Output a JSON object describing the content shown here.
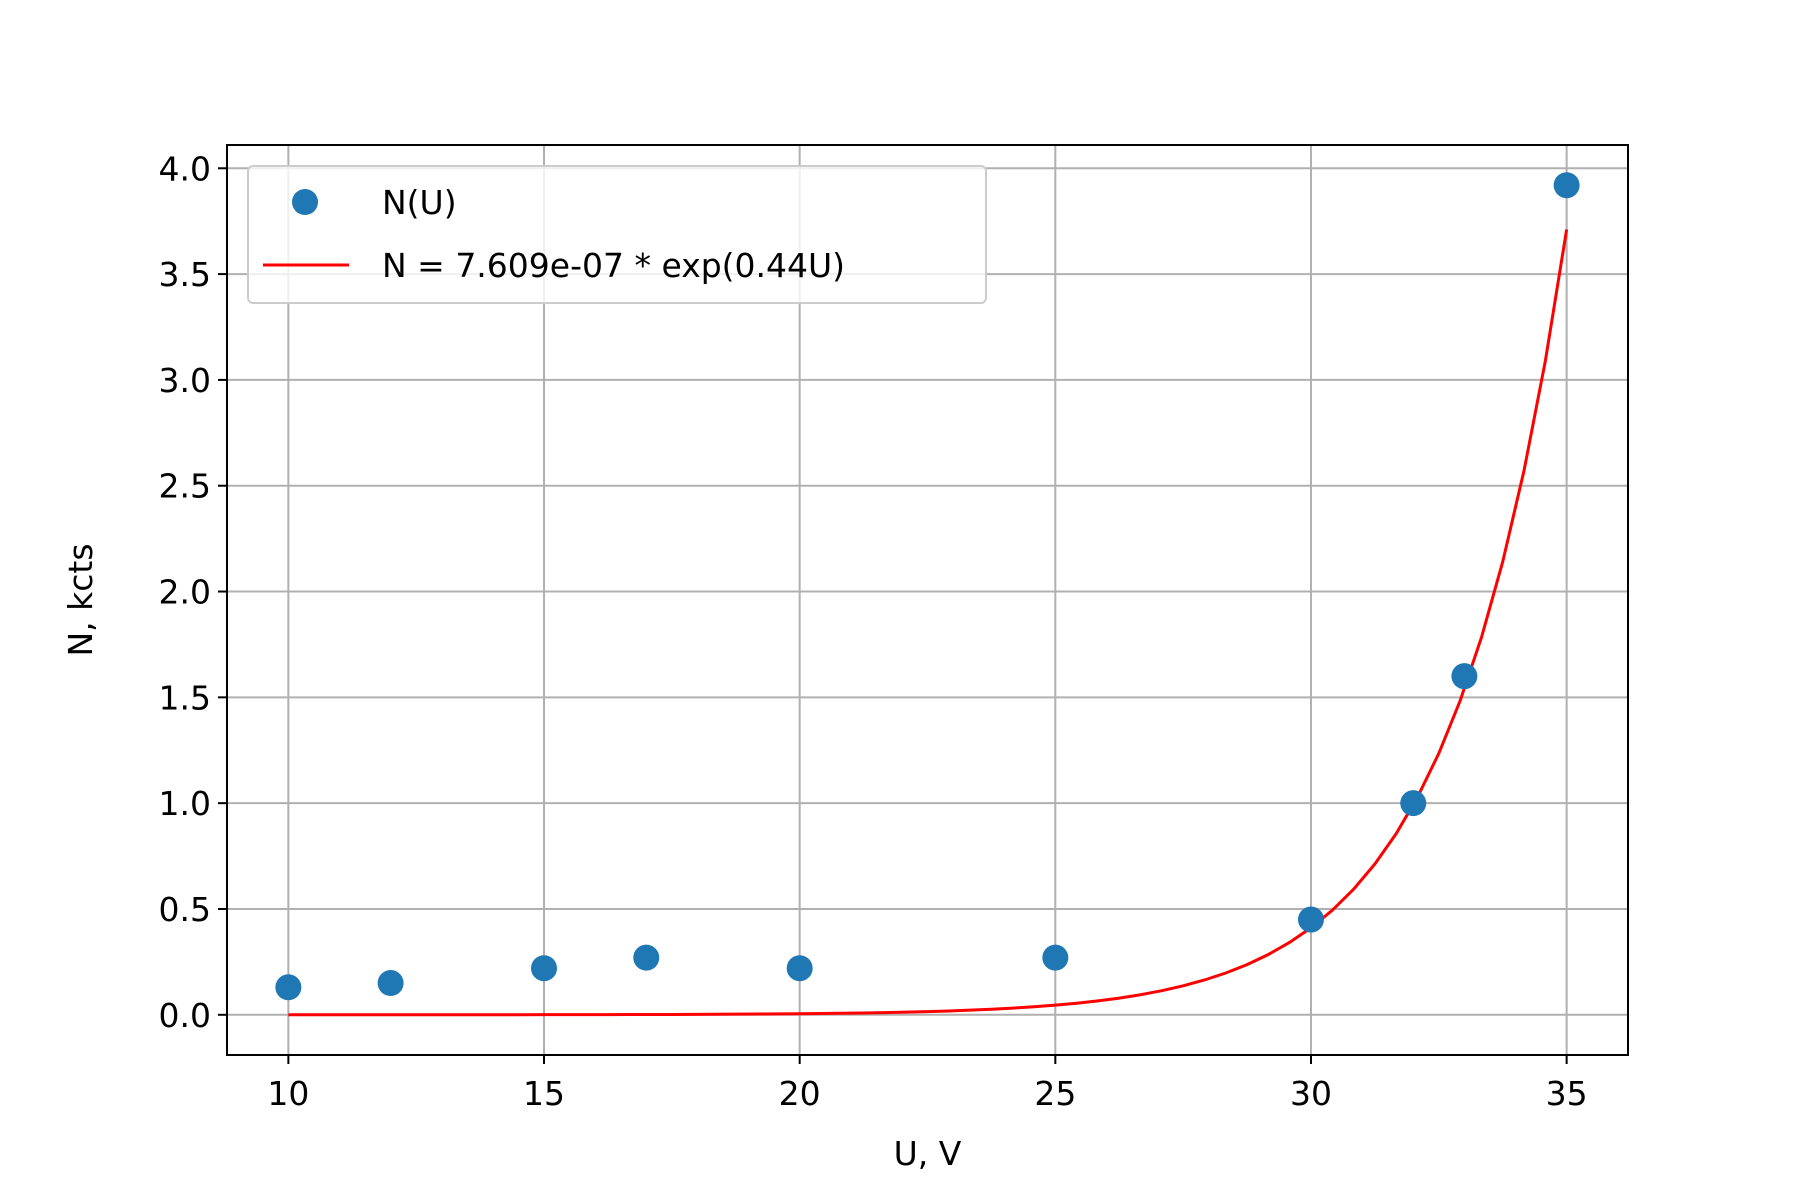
{
  "chart_data": {
    "type": "scatter",
    "xlabel": "U, V",
    "ylabel": "N, kcts",
    "xlim": [
      8.8,
      36.2
    ],
    "ylim": [
      -0.19,
      4.11
    ],
    "xticks": [
      10,
      15,
      20,
      25,
      30,
      35
    ],
    "xtick_labels": [
      "10",
      "15",
      "20",
      "25",
      "30",
      "35"
    ],
    "yticks": [
      0.0,
      0.5,
      1.0,
      1.5,
      2.0,
      2.5,
      3.0,
      3.5,
      4.0
    ],
    "ytick_labels": [
      "0.0",
      "0.5",
      "1.0",
      "1.5",
      "2.0",
      "2.5",
      "3.0",
      "3.5",
      "4.0"
    ],
    "grid": true,
    "legend_position": "top-left",
    "series": [
      {
        "name": "N(U)",
        "kind": "scatter",
        "color": "#1f77b4",
        "x": [
          10,
          12,
          15,
          17,
          20,
          25,
          30,
          32,
          33,
          35
        ],
        "y": [
          0.13,
          0.15,
          0.22,
          0.27,
          0.22,
          0.27,
          0.45,
          1.0,
          1.6,
          3.92
        ]
      },
      {
        "name": "N = 7.609e-07 * exp(0.44U)",
        "kind": "line",
        "color": "#ff0000",
        "function": {
          "a": 7.609e-07,
          "b": 0.44,
          "x_from": 10,
          "x_to": 35
        }
      }
    ]
  }
}
